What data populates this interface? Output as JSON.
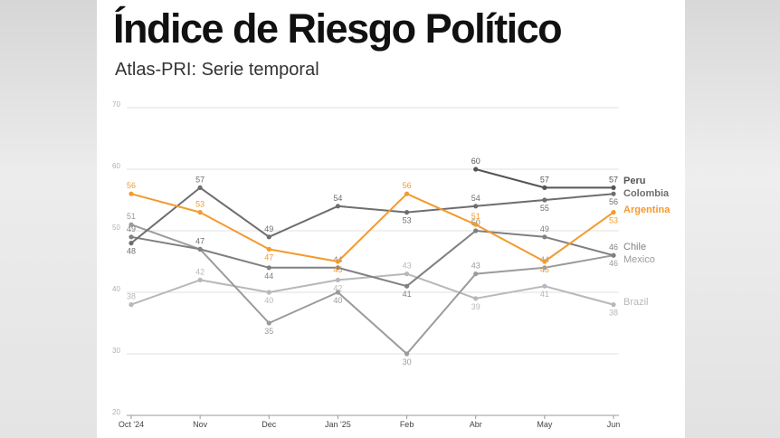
{
  "title": "Índice de Riesgo Político",
  "subtitle": "Atlas-PRI: Serie temporal",
  "colors": {
    "Peru": "#555555",
    "Colombia": "#6e6e6e",
    "Argentina": "#f39a2e",
    "Chile": "#808080",
    "Mexico": "#9b9b9b",
    "Brazil": "#b8b8b8"
  },
  "chart_data": {
    "type": "line",
    "title": "Índice de Riesgo Político",
    "subtitle": "Atlas-PRI: Serie temporal",
    "categories": [
      "Oct '24",
      "Nov",
      "Dec",
      "Jan '25",
      "Feb",
      "Abr",
      "May",
      "Jun"
    ],
    "ylim": [
      20,
      70
    ],
    "yticks": [
      20,
      30,
      40,
      50,
      60,
      70
    ],
    "grid": true,
    "legend": "end-of-line labels",
    "series": [
      {
        "name": "Peru",
        "values": [
          null,
          null,
          null,
          null,
          null,
          60,
          57,
          57
        ]
      },
      {
        "name": "Colombia",
        "values": [
          48,
          57,
          49,
          54,
          53,
          54,
          55,
          56
        ]
      },
      {
        "name": "Argentina",
        "values": [
          56,
          53,
          47,
          45,
          56,
          51,
          45,
          53
        ]
      },
      {
        "name": "Chile",
        "values": [
          49,
          47,
          44,
          44,
          41,
          50,
          49,
          46
        ]
      },
      {
        "name": "Mexico",
        "values": [
          51,
          47,
          35,
          40,
          30,
          43,
          44,
          46
        ]
      },
      {
        "name": "Brazil",
        "values": [
          38,
          42,
          40,
          42,
          43,
          39,
          41,
          38
        ]
      }
    ]
  }
}
